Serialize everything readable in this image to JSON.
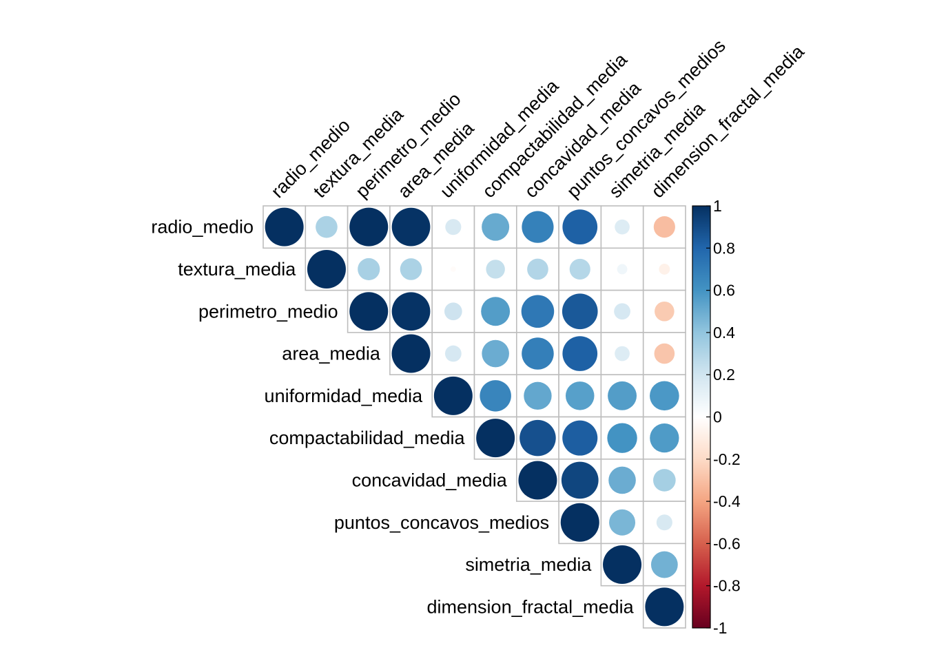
{
  "chart_data": {
    "type": "heatmap",
    "subtype": "correlation-matrix-upper-circles",
    "variables": [
      "radio_medio",
      "textura_media",
      "perimetro_medio",
      "area_media",
      "uniformidad_media",
      "compactabilidad_media",
      "concavidad_media",
      "puntos_concavos_medios",
      "simetria_media",
      "dimension_fractal_media"
    ],
    "matrix": [
      [
        1.0,
        0.32,
        1.0,
        0.99,
        0.17,
        0.51,
        0.68,
        0.82,
        0.15,
        -0.31
      ],
      [
        null,
        1.0,
        0.33,
        0.32,
        -0.02,
        0.24,
        0.3,
        0.29,
        0.07,
        -0.08
      ],
      [
        null,
        null,
        1.0,
        0.99,
        0.21,
        0.56,
        0.72,
        0.85,
        0.18,
        -0.26
      ],
      [
        null,
        null,
        null,
        1.0,
        0.18,
        0.5,
        0.69,
        0.82,
        0.15,
        -0.28
      ],
      [
        null,
        null,
        null,
        null,
        1.0,
        0.66,
        0.52,
        0.55,
        0.56,
        0.58
      ],
      [
        null,
        null,
        null,
        null,
        null,
        1.0,
        0.88,
        0.83,
        0.6,
        0.57
      ],
      [
        null,
        null,
        null,
        null,
        null,
        null,
        1.0,
        0.92,
        0.5,
        0.34
      ],
      [
        null,
        null,
        null,
        null,
        null,
        null,
        null,
        1.0,
        0.46,
        0.17
      ],
      [
        null,
        null,
        null,
        null,
        null,
        null,
        null,
        null,
        1.0,
        0.48
      ],
      [
        null,
        null,
        null,
        null,
        null,
        null,
        null,
        null,
        null,
        1.0
      ]
    ],
    "color_scale": {
      "min": -1,
      "max": 1,
      "ticks": [
        "1",
        "0.8",
        "0.6",
        "0.4",
        "0.2",
        "0",
        "-0.2",
        "-0.4",
        "-0.6",
        "-0.8",
        "-1"
      ],
      "stops": [
        "#67001F",
        "#B2182B",
        "#D6604D",
        "#F4A582",
        "#FDDBC7",
        "#FFFFFF",
        "#D1E5F0",
        "#92C5DE",
        "#4393C3",
        "#2166AC",
        "#053061"
      ]
    },
    "legend_position": "right"
  }
}
